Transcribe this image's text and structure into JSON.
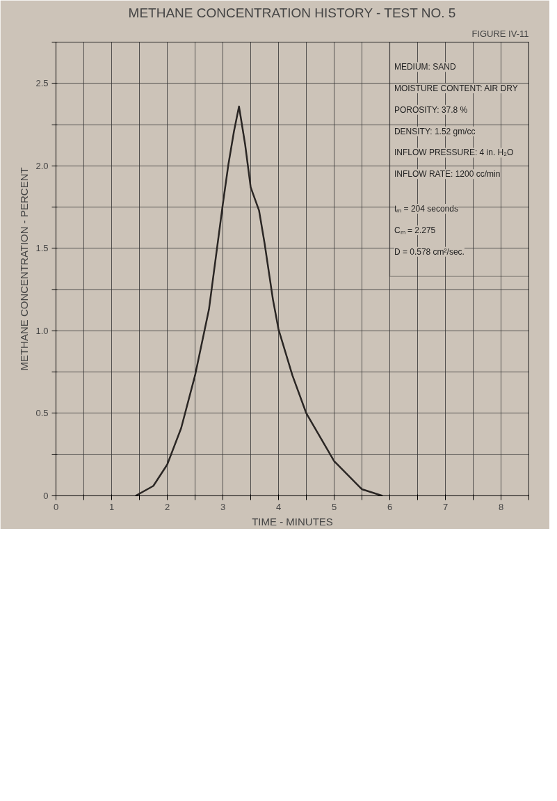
{
  "chart_data": {
    "type": "line",
    "title": "METHANE CONCENTRATION HISTORY - TEST NO. 5",
    "xlabel": "TIME - MINUTES",
    "ylabel": "METHANE CONCENTRATION - PERCENT",
    "annotations": [
      "FIGURE IV-11",
      "MEDIUM: SAND",
      "MOISTURE CONTENT: AIR DRY",
      "POROSITY: 37.8 %",
      "DENSITY: 1.52 gm/cc",
      "INFLOW PRESSURE: 4 in. H₂O",
      "INFLOW RATE: 1200 cc/min",
      "tₘ = 204 seconds",
      "Cₘ = 2.275",
      "D = 0.578 cm²/sec."
    ],
    "x": [
      1.43,
      1.75,
      2.0,
      2.25,
      2.5,
      2.75,
      3.0,
      3.1,
      3.2,
      3.29,
      3.4,
      3.5,
      3.65,
      3.75,
      3.9,
      4.0,
      4.25,
      4.5,
      5.0,
      5.5,
      5.87
    ],
    "series": [
      {
        "color": "#2a2624",
        "values": [
          0,
          0.06,
          0.19,
          0.41,
          0.73,
          1.13,
          1.77,
          2.01,
          2.21,
          2.36,
          2.13,
          1.87,
          1.73,
          1.53,
          1.19,
          1.01,
          0.73,
          0.5,
          0.21,
          0.04,
          0
        ]
      }
    ],
    "xlim": [
      0,
      8.5
    ],
    "ylim": [
      0,
      2.75
    ],
    "xticks": [
      0,
      {
        "value": 0.5,
        "label": null
      },
      1,
      {
        "value": 1.5,
        "label": null
      },
      2,
      {
        "value": 2.5,
        "label": null
      },
      3,
      {
        "value": 3.5,
        "label": null
      },
      4,
      {
        "value": 4.5,
        "label": null
      },
      5,
      {
        "value": 5.5,
        "label": null
      },
      6,
      {
        "value": 6.5,
        "label": null
      },
      7,
      {
        "value": 7.5,
        "label": null
      },
      8,
      {
        "value": 8.5,
        "label": null
      }
    ],
    "yticks": [
      0,
      {
        "value": 0.25,
        "label": null
      },
      0.5,
      {
        "value": 0.75,
        "label": null
      },
      {
        "value": 1.0,
        "label": "1.0"
      },
      {
        "value": 1.25,
        "label": null
      },
      1.5,
      {
        "value": 1.75,
        "label": null
      },
      {
        "value": 2.0,
        "label": "2.0"
      },
      {
        "value": 2.25,
        "label": null
      },
      2.5,
      {
        "value": 2.75,
        "label": null
      }
    ],
    "grid": true,
    "marker": "none",
    "line_style": "solid"
  }
}
